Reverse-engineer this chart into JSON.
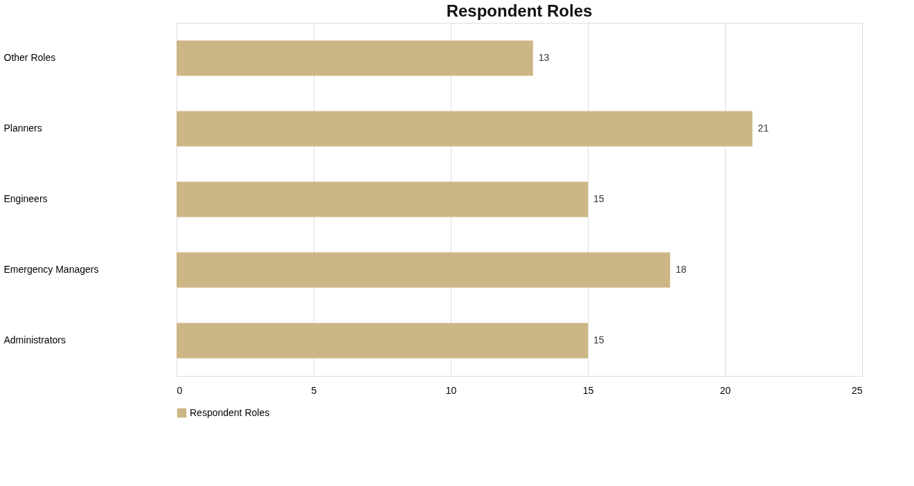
{
  "chart_data": {
    "type": "bar",
    "orientation": "horizontal",
    "title": "Respondent Roles",
    "categories": [
      "Other Roles",
      "Planners",
      "Engineers",
      "Emergency Managers",
      "Administrators"
    ],
    "series": [
      {
        "name": "Respondent Roles",
        "color": "#cdb686",
        "values": [
          13,
          21,
          15,
          18,
          15
        ]
      }
    ],
    "xlim": [
      0,
      25
    ],
    "xticks": [
      0,
      5,
      10,
      15,
      20,
      25
    ],
    "grid": "x",
    "legend": "bottom",
    "data_labels": true
  }
}
